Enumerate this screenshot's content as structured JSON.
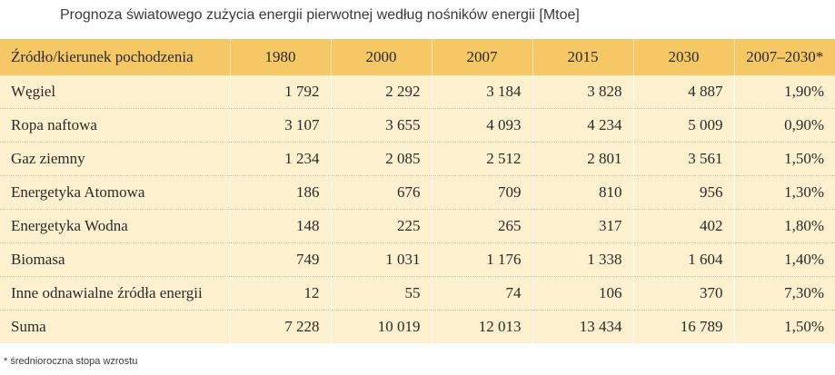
{
  "title": "Prognoza światowego zużycia energii pierwotnej według nośników energii [Mtoe]",
  "footnote": "* średnioroczna stopa wzrostu",
  "colors": {
    "header_bg": "#f5c765",
    "row_bg": "#fcf0cf"
  },
  "chart_data": {
    "type": "table",
    "columns": [
      "Źródło/kierunek pochodzenia",
      "1980",
      "2000",
      "2007",
      "2015",
      "2030",
      "2007–2030*"
    ],
    "rows": [
      [
        "Węgiel",
        "1 792",
        "2 292",
        "3 184",
        "3 828",
        "4 887",
        "1,90%"
      ],
      [
        "Ropa naftowa",
        "3 107",
        "3 655",
        "4 093",
        "4 234",
        "5 009",
        "0,90%"
      ],
      [
        "Gaz ziemny",
        "1 234",
        "2 085",
        "2 512",
        "2 801",
        "3 561",
        "1,50%"
      ],
      [
        "Energetyka Atomowa",
        "186",
        "676",
        "709",
        "810",
        "956",
        "1,30%"
      ],
      [
        "Energetyka Wodna",
        "148",
        "225",
        "265",
        "317",
        "402",
        "1,80%"
      ],
      [
        "Biomasa",
        "749",
        "1 031",
        "1 176",
        "1 338",
        "1 604",
        "1,40%"
      ],
      [
        "Inne odnawialne źródła energii",
        "12",
        "55",
        "74",
        "106",
        "370",
        "7,30%"
      ],
      [
        "Suma",
        "7 228",
        "10 019",
        "12 013",
        "13 434",
        "16 789",
        "1,50%"
      ]
    ]
  }
}
